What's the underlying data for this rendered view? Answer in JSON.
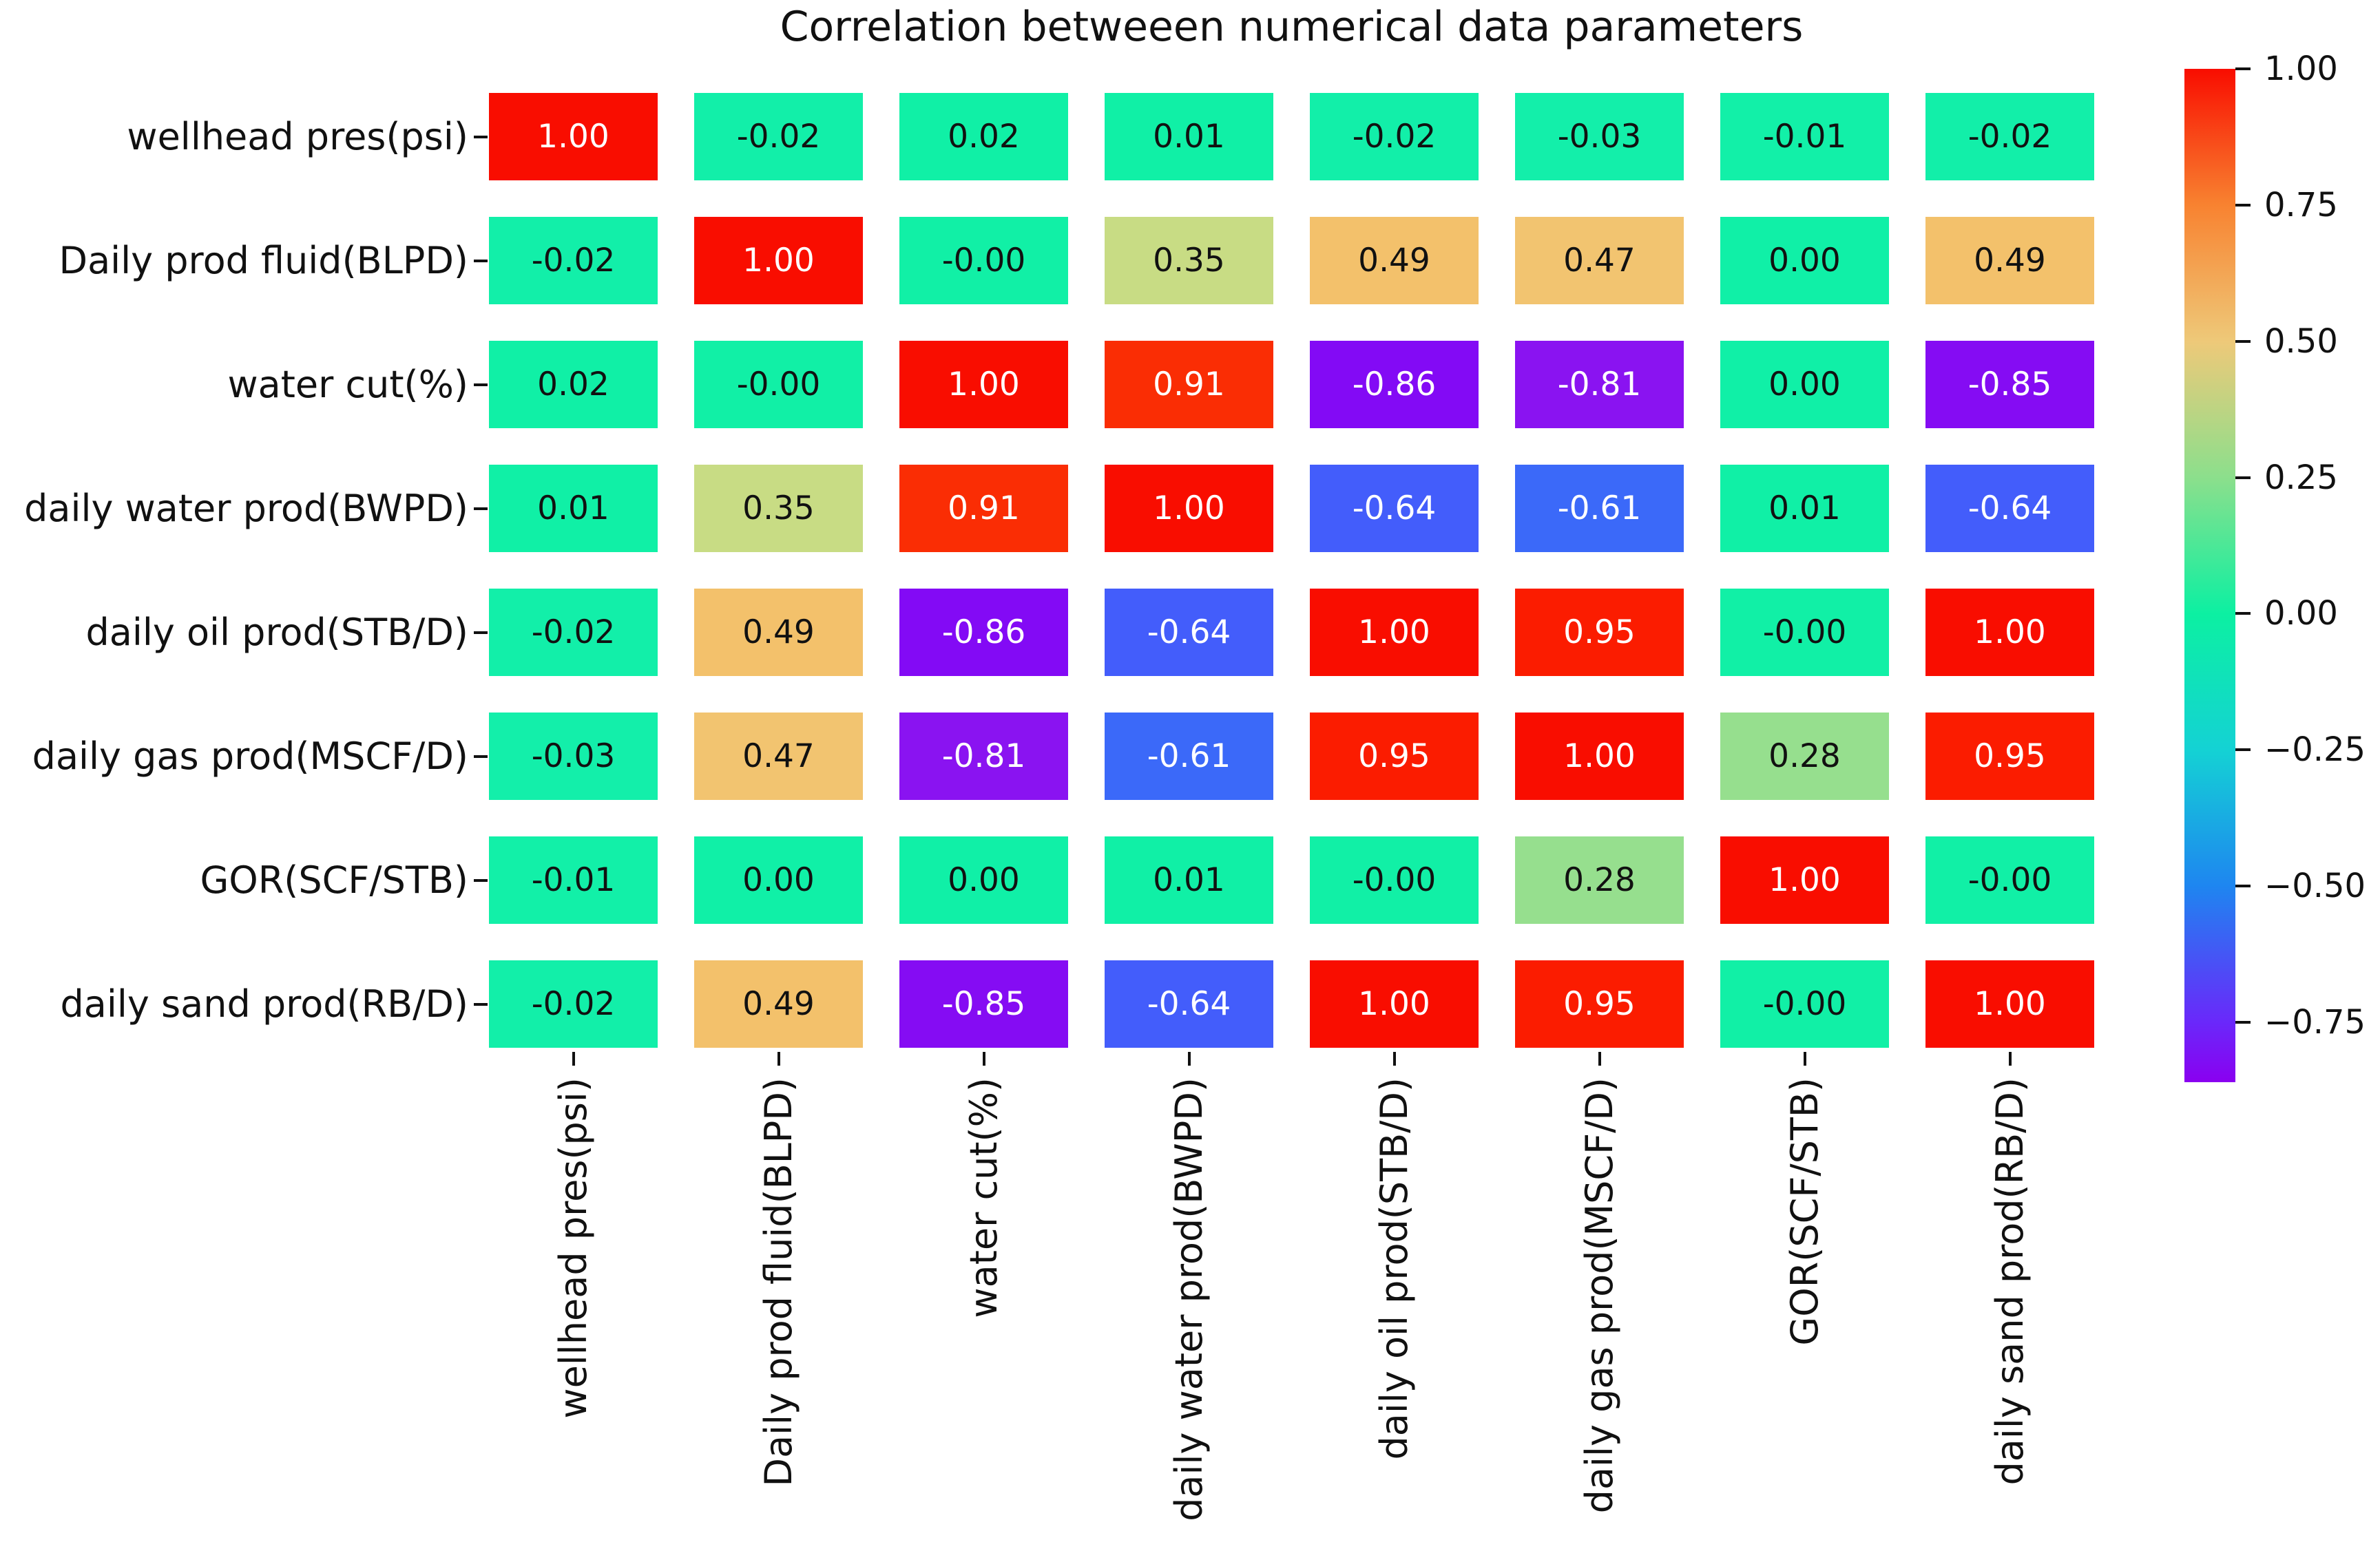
{
  "title": "Correlation betweeen numerical data parameters",
  "chart_data": {
    "type": "heatmap",
    "title": "Correlation betweeen numerical data parameters",
    "categories": [
      "wellhead pres(psi)",
      "Daily prod fluid(BLPD)",
      "water cut(%)",
      "daily water prod(BWPD)",
      "daily oil prod(STB/D)",
      "daily gas prod(MSCF/D)",
      "GOR(SCF/STB)",
      "daily sand prod(RB/D)"
    ],
    "matrix": [
      [
        "1.00",
        "-0.02",
        "0.02",
        "0.01",
        "-0.02",
        "-0.03",
        "-0.01",
        "-0.02"
      ],
      [
        "-0.02",
        "1.00",
        "-0.00",
        "0.35",
        "0.49",
        "0.47",
        "0.00",
        "0.49"
      ],
      [
        "0.02",
        "-0.00",
        "1.00",
        "0.91",
        "-0.86",
        "-0.81",
        "0.00",
        "-0.85"
      ],
      [
        "0.01",
        "0.35",
        "0.91",
        "1.00",
        "-0.64",
        "-0.61",
        "0.01",
        "-0.64"
      ],
      [
        "-0.02",
        "0.49",
        "-0.86",
        "-0.64",
        "1.00",
        "0.95",
        "-0.00",
        "1.00"
      ],
      [
        "-0.03",
        "0.47",
        "-0.81",
        "-0.61",
        "0.95",
        "1.00",
        "0.28",
        "0.95"
      ],
      [
        "-0.01",
        "0.00",
        "0.00",
        "0.01",
        "-0.00",
        "0.28",
        "1.00",
        "-0.00"
      ],
      [
        "-0.02",
        "0.49",
        "-0.85",
        "-0.64",
        "1.00",
        "0.95",
        "-0.00",
        "1.00"
      ]
    ],
    "colormap": "rainbow",
    "vmin": -0.86,
    "vmax": 1.0,
    "grid": false,
    "legend_position": "right-colorbar",
    "colorbar": {
      "tick_labels": [
        "1.00",
        "0.75",
        "0.50",
        "0.25",
        "0.00",
        "−0.25",
        "−0.50",
        "−0.75"
      ],
      "tick_values": [
        1.0,
        0.75,
        0.5,
        0.25,
        0.0,
        -0.25,
        -0.5,
        -0.75
      ]
    },
    "cell_colors": {
      "1.00": "#f90d00",
      "0.95": "#fb1c00",
      "0.91": "#fa2d04",
      "0.49": "#f3c16b",
      "0.47": "#f2c470",
      "0.35": "#c8dc84",
      "0.28": "#96df8e",
      "0.02": "#10f0a6",
      "0.01": "#10f0a6",
      "0.00": "#10f0a7",
      "-0.00": "#11f0a6",
      "-0.01": "#12f0a8",
      "-0.02": "#12efa9",
      "-0.03": "#13efaa",
      "-0.61": "#3b69f9",
      "-0.64": "#435dfb",
      "-0.81": "#8a13f1",
      "-0.85": "#850cf3",
      "-0.86": "#830af5"
    },
    "white_text_values": [
      "1.00",
      "0.95",
      "0.91",
      "-0.61",
      "-0.64",
      "-0.81",
      "-0.85",
      "-0.86"
    ],
    "annotation_black": "#111111",
    "annotation_white": "#ffffff",
    "gradient_stops": [
      [
        "0%",
        "#8a00f0"
      ],
      [
        "5.9%",
        "#6a28fa"
      ],
      [
        "19.4%",
        "#1e86f0"
      ],
      [
        "32.8%",
        "#14d2d4"
      ],
      [
        "46.2%",
        "#0cf0a2"
      ],
      [
        "59.7%",
        "#8cdf8c"
      ],
      [
        "73.1%",
        "#eec979"
      ],
      [
        "86.6%",
        "#f88230"
      ],
      [
        "100%",
        "#f90d00"
      ]
    ]
  }
}
